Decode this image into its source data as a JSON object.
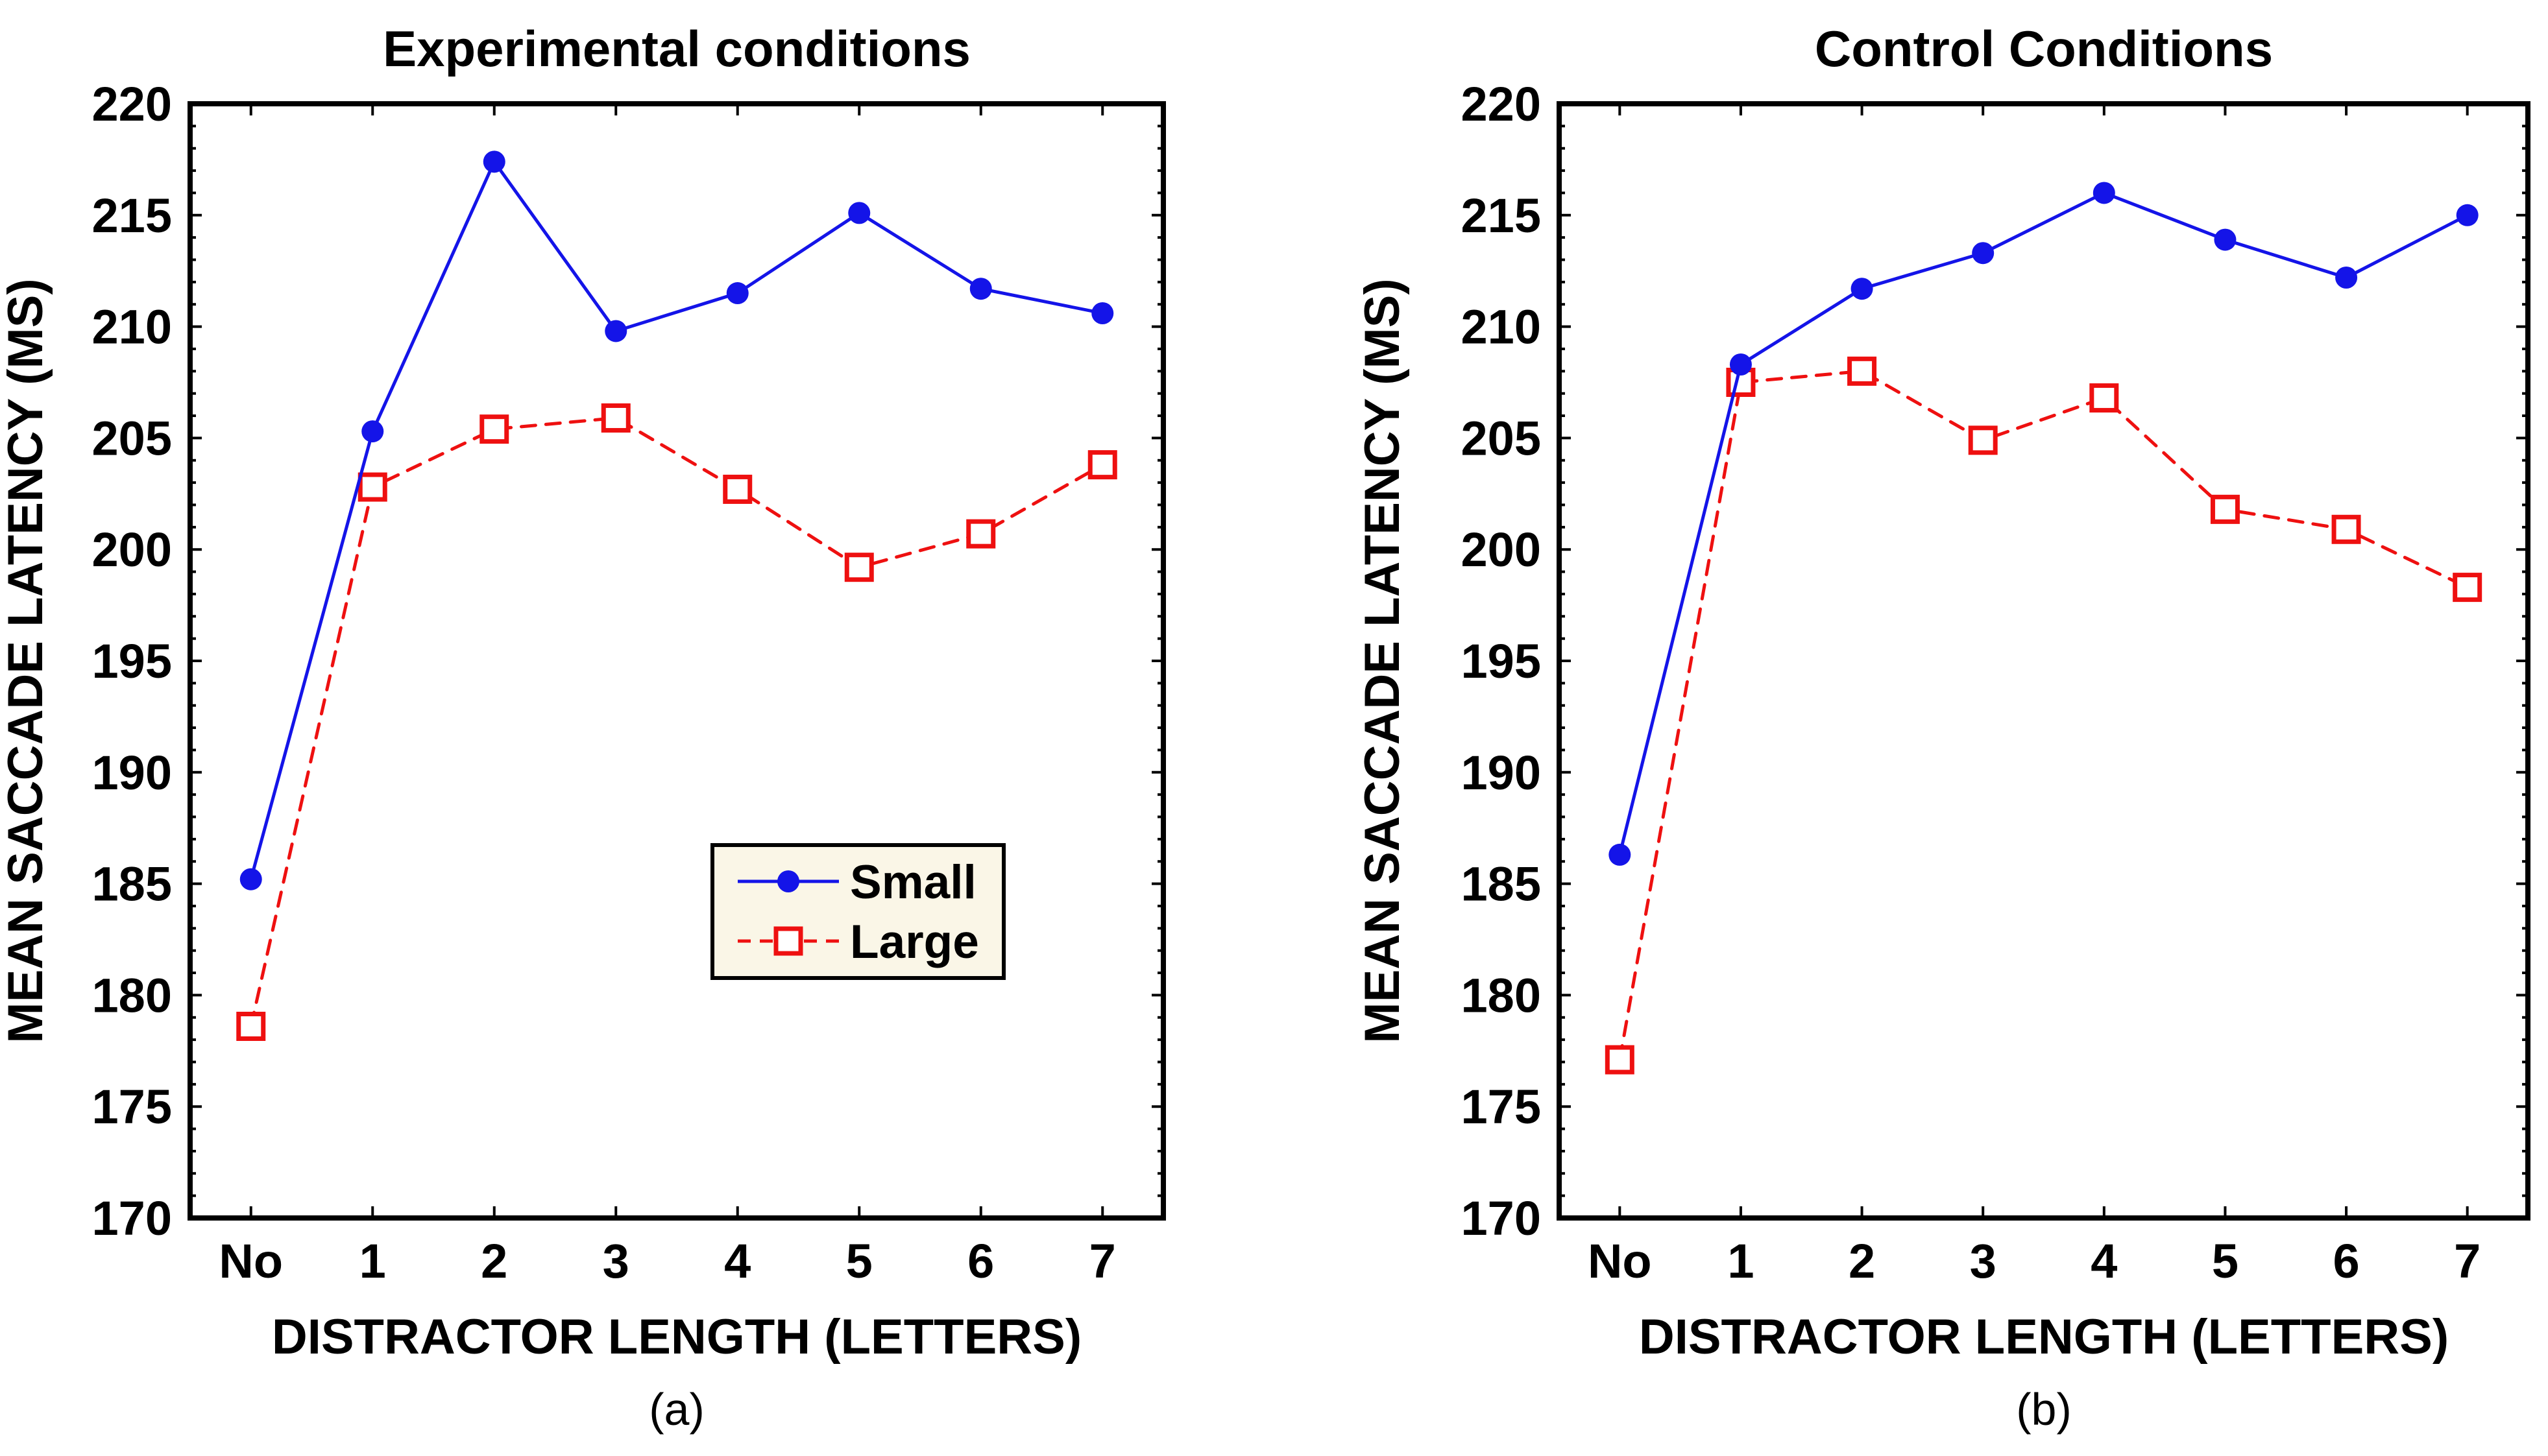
{
  "colors": {
    "page_bg": "#ffffff",
    "axis": "#000000",
    "text": "#000000",
    "small_series": "#1414e8",
    "large_series": "#ee1010",
    "legend_bg": "#faf6e7",
    "marker_fill_open": "#ffffff"
  },
  "chart_data": [
    {
      "type": "line",
      "title": "Experimental conditions",
      "panel_label": "(a)",
      "xlabel": "DISTRACTOR LENGTH (LETTERS)",
      "ylabel": "MEAN SACCADE LATENCY (MS)",
      "categories": [
        "No",
        "1",
        "2",
        "3",
        "4",
        "5",
        "6",
        "7"
      ],
      "ylim": [
        170,
        220
      ],
      "yticks": [
        170,
        175,
        180,
        185,
        190,
        195,
        200,
        205,
        210,
        215,
        220
      ],
      "ytick_major_step": 5,
      "ytick_minor_step": 1,
      "grid": "off",
      "legend_visible": true,
      "legend_position": "inside-lower-right",
      "series": [
        {
          "name": "Small",
          "color": "#1414e8",
          "line": "solid",
          "marker": "filled-circle",
          "values": [
            185.2,
            205.3,
            217.4,
            209.8,
            211.5,
            215.1,
            211.7,
            210.6
          ]
        },
        {
          "name": "Large",
          "color": "#ee1010",
          "line": "dashed",
          "marker": "open-square",
          "values": [
            178.6,
            202.8,
            205.4,
            205.9,
            202.7,
            199.2,
            200.7,
            203.8
          ]
        }
      ]
    },
    {
      "type": "line",
      "title": "Control Conditions",
      "panel_label": "(b)",
      "xlabel": "DISTRACTOR LENGTH (LETTERS)",
      "ylabel": "MEAN SACCADE LATENCY (MS)",
      "categories": [
        "No",
        "1",
        "2",
        "3",
        "4",
        "5",
        "6",
        "7"
      ],
      "ylim": [
        170,
        220
      ],
      "yticks": [
        170,
        175,
        180,
        185,
        190,
        195,
        200,
        205,
        210,
        215,
        220
      ],
      "ytick_major_step": 5,
      "ytick_minor_step": 1,
      "grid": "off",
      "legend_visible": false,
      "legend_position": "none",
      "series": [
        {
          "name": "Small",
          "color": "#1414e8",
          "line": "solid",
          "marker": "filled-circle",
          "values": [
            186.3,
            208.3,
            211.7,
            213.3,
            216.0,
            213.9,
            212.2,
            215.0
          ]
        },
        {
          "name": "Large",
          "color": "#ee1010",
          "line": "dashed",
          "marker": "open-square",
          "values": [
            177.1,
            207.5,
            208.0,
            204.9,
            206.8,
            201.8,
            200.9,
            198.3
          ]
        }
      ]
    }
  ]
}
